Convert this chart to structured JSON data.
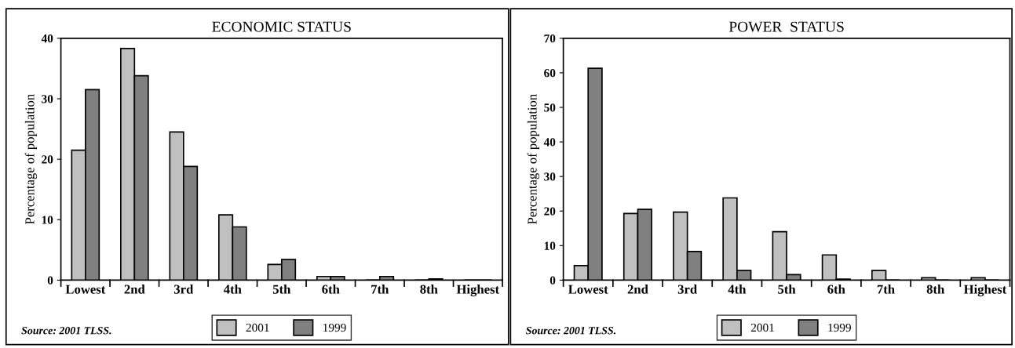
{
  "chart_data": [
    {
      "type": "bar",
      "title": "ECONOMIC STATUS",
      "ylabel": "Percentage of population",
      "categories": [
        "Lowest",
        "2nd",
        "3rd",
        "4th",
        "5th",
        "6th",
        "7th",
        "8th",
        "Highest"
      ],
      "series": [
        {
          "name": "2001",
          "color": "#c0c0c0",
          "values": [
            21.5,
            38.3,
            24.5,
            10.8,
            2.6,
            0.6,
            0,
            0,
            0
          ]
        },
        {
          "name": "1999",
          "color": "#808080",
          "values": [
            31.5,
            33.8,
            18.8,
            8.8,
            3.4,
            0.6,
            0.6,
            0.2,
            0
          ]
        }
      ],
      "ylim": [
        0,
        40
      ],
      "yticks": [
        0,
        10,
        20,
        30,
        40
      ],
      "legend": "bottom",
      "annotations": [
        "Source: 2001 TLSS."
      ]
    },
    {
      "type": "bar",
      "title": "POWER  STATUS",
      "ylabel": "Percentage of population",
      "categories": [
        "Lowest",
        "2nd",
        "3rd",
        "4th",
        "5th",
        "6th",
        "7th",
        "8th",
        "Highest"
      ],
      "series": [
        {
          "name": "2001",
          "color": "#c0c0c0",
          "values": [
            4.2,
            19.3,
            19.7,
            23.8,
            14.0,
            7.3,
            2.8,
            0.7,
            0.7
          ]
        },
        {
          "name": "1999",
          "color": "#808080",
          "values": [
            61.3,
            20.5,
            8.3,
            2.8,
            1.6,
            0.3,
            0,
            0,
            0
          ]
        }
      ],
      "ylim": [
        0,
        70
      ],
      "yticks": [
        0,
        10,
        20,
        30,
        40,
        50,
        60,
        70
      ],
      "legend": "bottom",
      "annotations": [
        "Source: 2001 TLSS."
      ]
    }
  ]
}
